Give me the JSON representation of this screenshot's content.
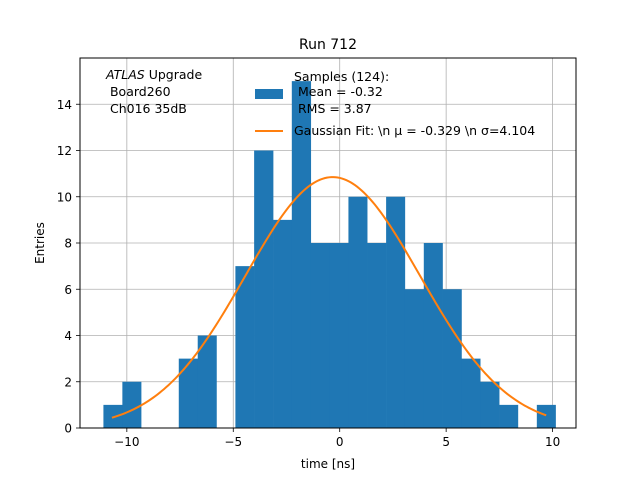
{
  "chart_data": {
    "type": "bar",
    "title": "Run 712",
    "xlabel": "time [ns]",
    "ylabel": "Entries",
    "xlim": [
      -12.2,
      11.1
    ],
    "ylim": [
      0,
      16
    ],
    "xticks": [
      -10,
      -5,
      0,
      5,
      10
    ],
    "yticks": [
      0,
      2,
      4,
      6,
      8,
      10,
      12,
      14
    ],
    "grid": true,
    "legend_position": "top-right",
    "annotation": {
      "italic": "ATLAS",
      "rest": " Upgrade",
      "line2": " Board260",
      "line3": " Ch016 35dB"
    },
    "histogram": {
      "name": "Samples (124):",
      "stats": [
        " Mean = -0.32",
        " RMS = 3.87"
      ],
      "color": "#1f77b4",
      "bin_edges": [
        -11.1,
        -10.21,
        -9.33,
        -8.44,
        -7.56,
        -6.67,
        -5.79,
        -4.9,
        -4.02,
        -3.13,
        -2.25,
        -1.36,
        -0.48,
        0.41,
        1.29,
        2.18,
        3.06,
        3.95,
        4.83,
        5.72,
        6.6,
        7.49,
        8.37,
        9.26,
        10.14
      ],
      "counts": [
        1,
        2,
        0,
        0,
        3,
        4,
        0,
        7,
        12,
        9,
        15,
        8,
        8,
        10,
        8,
        10,
        6,
        8,
        6,
        3,
        2,
        1,
        0,
        1
      ]
    },
    "fit": {
      "name": "Gaussian Fit: \\n μ = -0.329 \\n σ=4.104",
      "mu": -0.329,
      "sigma": 4.104,
      "amplitude": 10.85,
      "x_range": [
        -10.7,
        9.7
      ],
      "color": "#ff7f0e"
    }
  }
}
